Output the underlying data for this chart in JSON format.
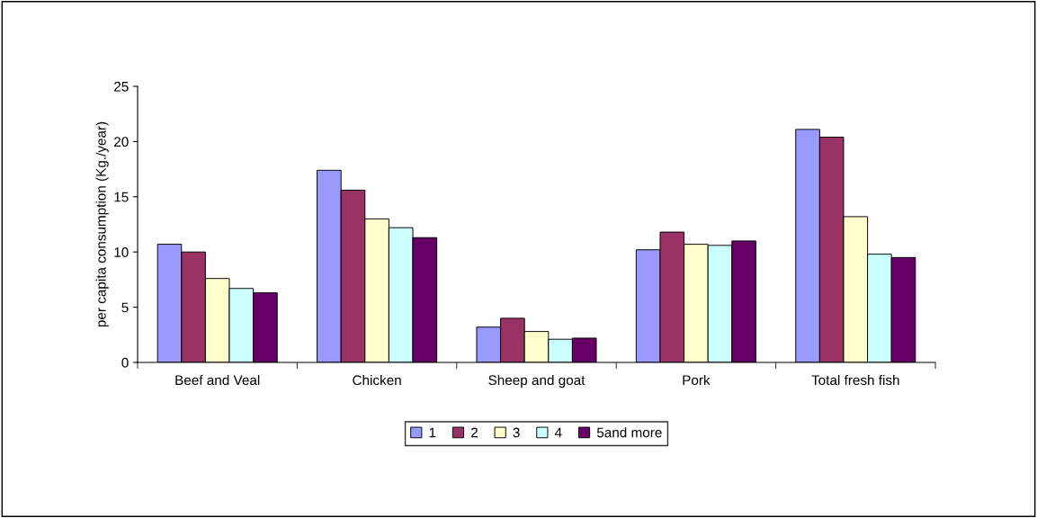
{
  "chart_data": {
    "type": "bar",
    "ylabel": "per capita consumption (Kg./year)",
    "categories": [
      "Beef and Veal",
      "Chicken",
      "Sheep and goat",
      "Pork",
      "Total fresh fish"
    ],
    "series": [
      {
        "name": "1",
        "color": "#9999ff",
        "values": [
          10.7,
          17.4,
          3.2,
          10.2,
          21.1
        ]
      },
      {
        "name": "2",
        "color": "#993366",
        "values": [
          10.0,
          15.6,
          4.0,
          11.8,
          20.4
        ]
      },
      {
        "name": "3",
        "color": "#ffffcc",
        "values": [
          7.6,
          13.0,
          2.8,
          10.7,
          13.2
        ]
      },
      {
        "name": "4",
        "color": "#ccffff",
        "values": [
          6.7,
          12.2,
          2.1,
          10.6,
          9.8
        ]
      },
      {
        "name": "5and more",
        "color": "#660066",
        "values": [
          6.3,
          11.3,
          2.2,
          11.0,
          9.5
        ]
      }
    ],
    "ylim": [
      0,
      25
    ],
    "yticks": [
      0,
      5,
      10,
      15,
      20,
      25
    ],
    "grid": false,
    "legend": "bottom"
  }
}
